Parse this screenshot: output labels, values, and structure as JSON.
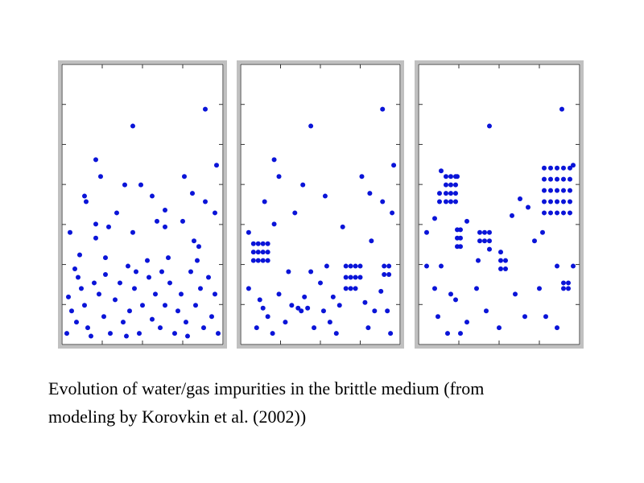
{
  "chart_data": [
    {
      "type": "scatter",
      "color": "#0a14d8",
      "xlim": [
        0,
        100
      ],
      "ylim": [
        0,
        100
      ],
      "x": [
        89,
        44,
        96,
        21,
        24,
        14,
        15,
        39,
        49,
        56,
        76,
        81,
        89,
        34,
        5,
        21,
        21,
        64,
        95,
        29,
        59,
        64,
        75,
        82,
        85,
        44,
        11,
        27,
        41,
        53,
        66,
        84,
        8,
        10,
        12,
        4,
        6,
        9,
        14,
        16,
        20,
        23,
        26,
        30,
        33,
        36,
        38,
        42,
        45,
        48,
        50,
        54,
        56,
        58,
        61,
        64,
        67,
        70,
        72,
        74,
        77,
        80,
        83,
        86,
        88,
        91,
        93,
        95,
        97,
        3,
        18,
        27,
        46,
        62,
        40,
        78
      ],
      "y": [
        84,
        78,
        64,
        66,
        60,
        53,
        51,
        57,
        57,
        53,
        60,
        54,
        51,
        47,
        40,
        43,
        38,
        48,
        47,
        42,
        44,
        42,
        44,
        37,
        35,
        40,
        32,
        31,
        28,
        30,
        31,
        30,
        27,
        24,
        20,
        17,
        12,
        8,
        14,
        6,
        22,
        18,
        10,
        4,
        16,
        22,
        8,
        12,
        20,
        4,
        14,
        24,
        9,
        18,
        6,
        14,
        22,
        4,
        12,
        18,
        8,
        26,
        14,
        20,
        6,
        24,
        10,
        18,
        4,
        4,
        3,
        25,
        26,
        26,
        3,
        3
      ]
    },
    {
      "type": "scatter",
      "color": "#0a14d8",
      "xlim": [
        0,
        100
      ],
      "ylim": [
        0,
        100
      ],
      "x": [
        89,
        44,
        96,
        21,
        24,
        15,
        39,
        53,
        76,
        81,
        89,
        34,
        5,
        21,
        64,
        82,
        95,
        8,
        11,
        14,
        17,
        8,
        11,
        14,
        17,
        8,
        11,
        14,
        17,
        66,
        69,
        72,
        75,
        66,
        69,
        72,
        75,
        66,
        69,
        72,
        90,
        93,
        90,
        93,
        5,
        12,
        14,
        17,
        10,
        20,
        24,
        28,
        32,
        36,
        38,
        42,
        40,
        46,
        50,
        52,
        56,
        58,
        60,
        62,
        78,
        80,
        84,
        88,
        92,
        94,
        54,
        44,
        30
      ],
      "y": [
        84,
        78,
        64,
        66,
        60,
        51,
        57,
        53,
        60,
        54,
        51,
        47,
        40,
        43,
        42,
        37,
        47,
        33,
        33,
        33,
        33,
        30,
        30,
        30,
        30,
        36,
        36,
        36,
        36,
        28,
        28,
        28,
        28,
        24,
        24,
        24,
        24,
        20,
        20,
        20,
        28,
        28,
        25,
        25,
        20,
        16,
        13,
        10,
        6,
        4,
        18,
        8,
        14,
        13,
        12,
        13,
        17,
        6,
        22,
        12,
        8,
        17,
        4,
        14,
        15,
        6,
        12,
        19,
        12,
        4,
        28,
        26,
        26
      ]
    },
    {
      "type": "scatter",
      "color": "#0a14d8",
      "xlim": [
        0,
        100
      ],
      "ylim": [
        0,
        100
      ],
      "x": [
        89,
        44,
        96,
        5,
        24,
        17,
        20,
        23,
        17,
        20,
        23,
        17,
        20,
        23,
        17,
        20,
        23,
        13,
        13,
        78,
        82,
        86,
        90,
        94,
        78,
        82,
        86,
        90,
        94,
        78,
        82,
        86,
        90,
        94,
        78,
        82,
        86,
        90,
        94,
        78,
        82,
        86,
        90,
        94,
        24,
        26,
        24,
        26,
        24,
        26,
        38,
        41,
        44,
        38,
        41,
        44,
        51,
        54,
        51,
        54,
        51,
        90,
        93,
        90,
        93,
        14,
        10,
        30,
        37,
        44,
        58,
        63,
        68,
        72,
        77,
        5,
        14,
        20,
        23,
        10,
        30,
        36,
        42,
        50,
        12,
        18,
        26,
        60,
        66,
        75,
        79,
        86,
        96,
        86
      ],
      "y": [
        84,
        78,
        64,
        40,
        60,
        51,
        51,
        51,
        54,
        54,
        54,
        57,
        57,
        57,
        60,
        60,
        60,
        54,
        51,
        47,
        47,
        47,
        47,
        47,
        51,
        51,
        51,
        51,
        51,
        55,
        55,
        55,
        55,
        55,
        59,
        59,
        59,
        59,
        59,
        63,
        63,
        63,
        63,
        63,
        38,
        38,
        35,
        35,
        41,
        41,
        40,
        40,
        40,
        37,
        37,
        37,
        30,
        30,
        27,
        27,
        33,
        22,
        22,
        20,
        20,
        62,
        45,
        44,
        30,
        34,
        46,
        52,
        49,
        37,
        40,
        28,
        28,
        18,
        16,
        20,
        8,
        20,
        12,
        6,
        10,
        4,
        4,
        18,
        10,
        20,
        10,
        6,
        28,
        28
      ]
    }
  ],
  "caption": [
    "Evolution of  water/gas impurities in the brittle medium (from",
    "modeling by Korovkin et al. (2002))"
  ]
}
